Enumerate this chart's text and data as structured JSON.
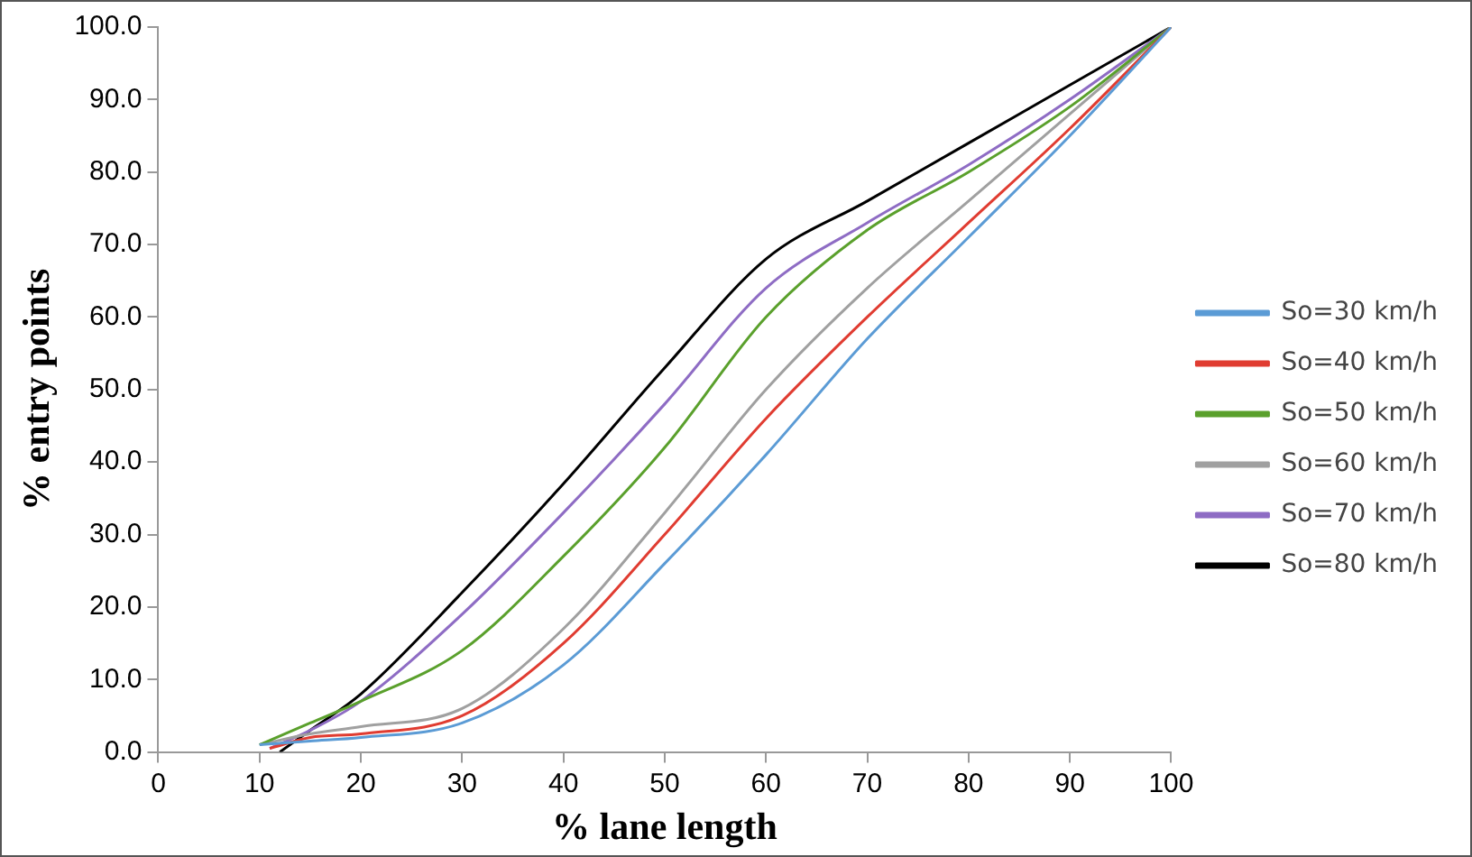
{
  "chart_data": {
    "type": "line",
    "xlabel": "% lane length",
    "ylabel": "% entry points",
    "xlim": [
      0,
      100
    ],
    "xticks": [
      0,
      10,
      20,
      30,
      40,
      50,
      60,
      70,
      80,
      90,
      100
    ],
    "ylim": [
      0,
      100
    ],
    "yticks": [
      {
        "value": 0,
        "label": "0.0"
      },
      {
        "value": 10,
        "label": "10.0"
      },
      {
        "value": 20,
        "label": "20.0"
      },
      {
        "value": 30,
        "label": "30.0"
      },
      {
        "value": 40,
        "label": "40.0"
      },
      {
        "value": 50,
        "label": "50.0"
      },
      {
        "value": 60,
        "label": "60.0"
      },
      {
        "value": 70,
        "label": "70.0"
      },
      {
        "value": 80,
        "label": "80.0"
      },
      {
        "value": 90,
        "label": "90.0"
      },
      {
        "value": 100,
        "label": "100.0"
      }
    ],
    "grid": false,
    "legend": "right",
    "marker": "none",
    "line_style": "solid",
    "series": [
      {
        "name": "So=30 km/h",
        "color": "#5b9bd5",
        "x": [
          10,
          15,
          20,
          30,
          40,
          50,
          60,
          70,
          80,
          90,
          100
        ],
        "values": [
          1,
          1.5,
          2,
          4,
          12,
          26,
          41,
          57,
          71,
          85,
          100
        ]
      },
      {
        "name": "So=40 km/h",
        "color": "#e03c31",
        "x": [
          11,
          15,
          20,
          30,
          40,
          50,
          60,
          70,
          80,
          90,
          100
        ],
        "values": [
          0.5,
          2,
          2.5,
          5,
          15,
          30,
          46,
          60,
          73,
          86,
          100
        ]
      },
      {
        "name": "So=50 km/h",
        "color": "#5aa02c",
        "x": [
          10,
          15,
          20,
          30,
          40,
          50,
          60,
          70,
          80,
          90,
          100
        ],
        "values": [
          1,
          4,
          7,
          14,
          27,
          42,
          60,
          72,
          80,
          89,
          100
        ]
      },
      {
        "name": "So=60 km/h",
        "color": "#a0a0a0",
        "x": [
          10,
          15,
          20,
          30,
          40,
          50,
          60,
          70,
          80,
          90,
          100
        ],
        "values": [
          1,
          2.5,
          3.5,
          6,
          17,
          33,
          50,
          64,
          76,
          88,
          100
        ]
      },
      {
        "name": "So=70 km/h",
        "color": "#8e6cc4",
        "x": [
          11,
          15,
          20,
          30,
          40,
          50,
          60,
          70,
          80,
          90,
          100
        ],
        "values": [
          0.5,
          3,
          7,
          19,
          33,
          48,
          64,
          73,
          81,
          90,
          100
        ]
      },
      {
        "name": "So=80 km/h",
        "color": "#000000",
        "x": [
          12,
          15,
          20,
          30,
          40,
          50,
          60,
          70,
          80,
          90,
          100
        ],
        "values": [
          0,
          3,
          8,
          22,
          37,
          53,
          68,
          76,
          84,
          92,
          100
        ]
      }
    ]
  }
}
